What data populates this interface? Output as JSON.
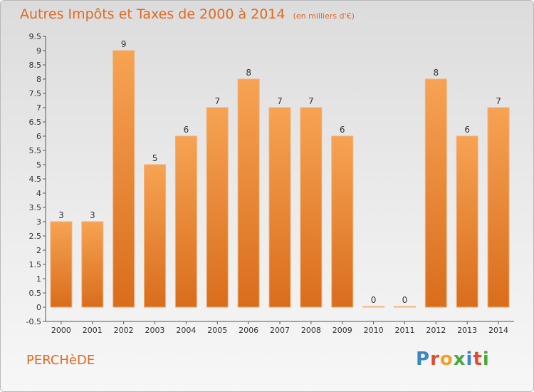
{
  "title": "Autres Impôts et Taxes de 2000 à 2014",
  "unit": "(en milliers d'€)",
  "footer": "PERCHèDE",
  "logo": [
    "P",
    "r",
    "o",
    "x",
    "i",
    "t",
    "i"
  ],
  "colors": {
    "title": "#e06a23",
    "bar_top": "#f6a353",
    "bar_bottom": "#d96d1c",
    "logo": [
      "#3a86c8",
      "#e34a2f",
      "#f0a12a",
      "#4aa83f",
      "#3a86c8",
      "#e34a2f",
      "#4aa83f"
    ]
  },
  "chart_data": {
    "type": "bar",
    "categories": [
      "2000",
      "2001",
      "2002",
      "2003",
      "2004",
      "2005",
      "2006",
      "2007",
      "2008",
      "2009",
      "2010",
      "2011",
      "2012",
      "2013",
      "2014"
    ],
    "values": [
      3,
      3,
      9,
      5,
      6,
      7,
      8,
      7,
      7,
      6,
      0,
      0,
      8,
      6,
      7
    ],
    "data_labels": [
      "3",
      "3",
      "9",
      "5",
      "6",
      "7",
      "8",
      "7",
      "7",
      "6",
      "0",
      "0",
      "8",
      "6",
      "7"
    ],
    "yticks": [
      "-0.5",
      "0",
      "0.5",
      "1",
      "1.5",
      "2",
      "2.5",
      "3",
      "3.5",
      "4",
      "4.5",
      "5",
      "5.5",
      "6",
      "6.5",
      "7",
      "7.5",
      "8",
      "8.5",
      "9",
      "9.5"
    ],
    "ylim": [
      -0.5,
      9.5
    ],
    "grid": false,
    "legend": "none"
  }
}
